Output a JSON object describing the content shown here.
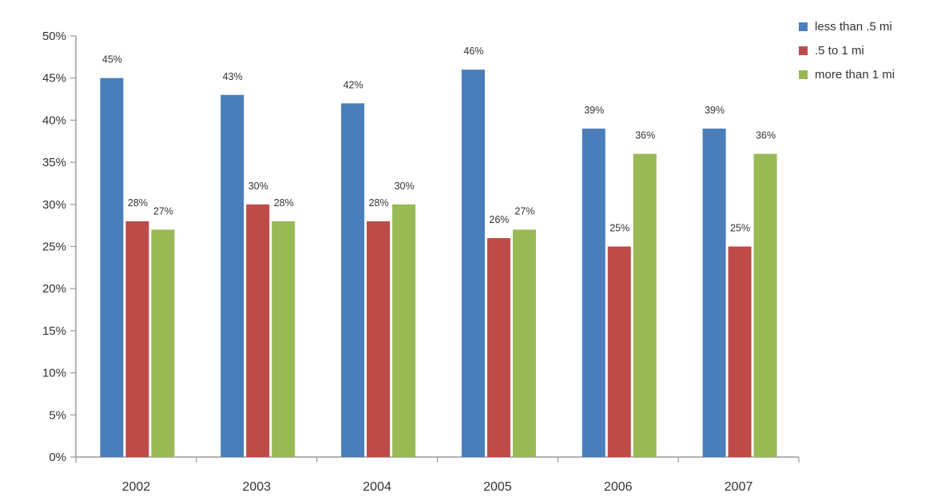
{
  "chart_data": {
    "type": "bar",
    "categories": [
      "2002",
      "2003",
      "2004",
      "2005",
      "2006",
      "2007"
    ],
    "series": [
      {
        "name": "less than .5 mi",
        "color": "#4a7ebb",
        "values": [
          45,
          43,
          42,
          46,
          39,
          39
        ],
        "labels": [
          "45%",
          "43%",
          "42%",
          "46%",
          "39%",
          "39%"
        ]
      },
      {
        "name": ".5 to 1 mi",
        "color": "#be4b48",
        "values": [
          28,
          30,
          28,
          26,
          25,
          25
        ],
        "labels": [
          "28%",
          "30%",
          "28%",
          "26%",
          "25%",
          "25%"
        ]
      },
      {
        "name": "more than 1 mi",
        "color": "#98b954",
        "values": [
          27,
          28,
          30,
          27,
          36,
          36
        ],
        "labels": [
          "27%",
          "28%",
          "30%",
          "27%",
          "36%",
          "36%"
        ]
      }
    ],
    "yticks": [
      "0%",
      "5%",
      "10%",
      "15%",
      "20%",
      "25%",
      "30%",
      "35%",
      "40%",
      "45%",
      "50%"
    ],
    "ylim": [
      0,
      50
    ],
    "legend_position": "top-right",
    "grid": false
  }
}
